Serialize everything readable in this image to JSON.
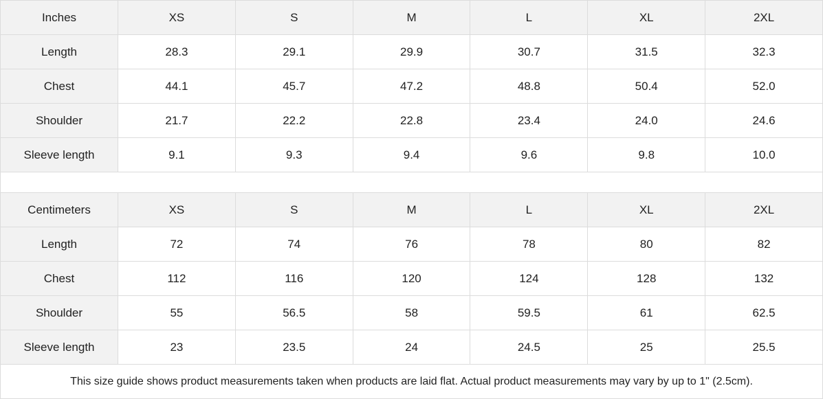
{
  "inches": {
    "header": [
      "Inches",
      "XS",
      "S",
      "M",
      "L",
      "XL",
      "2XL"
    ],
    "rows": [
      [
        "Length",
        "28.3",
        "29.1",
        "29.9",
        "30.7",
        "31.5",
        "32.3"
      ],
      [
        "Chest",
        "44.1",
        "45.7",
        "47.2",
        "48.8",
        "50.4",
        "52.0"
      ],
      [
        "Shoulder",
        "21.7",
        "22.2",
        "22.8",
        "23.4",
        "24.0",
        "24.6"
      ],
      [
        "Sleeve length",
        "9.1",
        "9.3",
        "9.4",
        "9.6",
        "9.8",
        "10.0"
      ]
    ]
  },
  "centimeters": {
    "header": [
      "Centimeters",
      "XS",
      "S",
      "M",
      "L",
      "XL",
      "2XL"
    ],
    "rows": [
      [
        "Length",
        "72",
        "74",
        "76",
        "78",
        "80",
        "82"
      ],
      [
        "Chest",
        "112",
        "116",
        "120",
        "124",
        "128",
        "132"
      ],
      [
        "Shoulder",
        "55",
        "56.5",
        "58",
        "59.5",
        "61",
        "62.5"
      ],
      [
        "Sleeve length",
        "23",
        "23.5",
        "24",
        "24.5",
        "25",
        "25.5"
      ]
    ]
  },
  "footnote": "This size guide shows product measurements taken when products are laid flat.  Actual product measurements may vary by up to 1\" (2.5cm)."
}
